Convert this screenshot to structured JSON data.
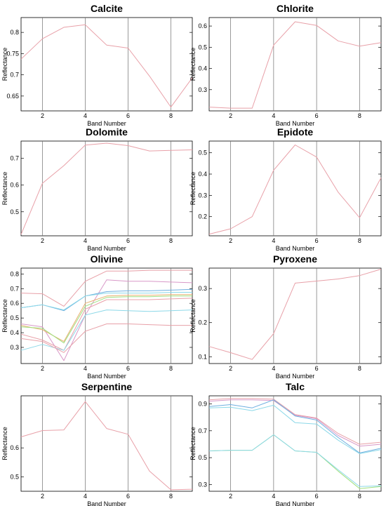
{
  "chart_data": [
    {
      "type": "line",
      "title": "Calcite",
      "xlabel": "Band Number",
      "ylabel": "Reflectance",
      "xlim": [
        1,
        9
      ],
      "ylim": [
        0.615,
        0.835
      ],
      "xticks": [
        2,
        4,
        6,
        8
      ],
      "yticks": [
        0.65,
        0.7,
        0.75,
        0.8
      ],
      "ytick_labels": [
        "0.65",
        "0.7",
        "0.75",
        "0.8"
      ],
      "x": [
        1,
        2,
        3,
        4,
        5,
        6,
        7,
        8,
        9
      ],
      "series": [
        {
          "color": "#e8a0a8",
          "values": [
            0.737,
            0.785,
            0.812,
            0.818,
            0.77,
            0.763,
            0.697,
            0.624,
            0.693
          ]
        }
      ]
    },
    {
      "type": "line",
      "title": "Chlorite",
      "xlabel": "Band Number",
      "ylabel": "Reflectance",
      "xlim": [
        1,
        9
      ],
      "ylim": [
        0.2,
        0.64
      ],
      "xticks": [
        2,
        4,
        6,
        8
      ],
      "yticks": [
        0.3,
        0.4,
        0.5,
        0.6
      ],
      "ytick_labels": [
        "0.3",
        "0.4",
        "0.5",
        "0.6"
      ],
      "x": [
        1,
        2,
        3,
        4,
        5,
        6,
        7,
        8,
        9
      ],
      "series": [
        {
          "color": "#e8a0a8",
          "values": [
            0.218,
            0.213,
            0.213,
            0.51,
            0.62,
            0.603,
            0.53,
            0.505,
            0.522
          ]
        }
      ]
    },
    {
      "type": "line",
      "title": "Dolomite",
      "xlabel": "Band Number",
      "ylabel": "Reflectance",
      "xlim": [
        1,
        9
      ],
      "ylim": [
        0.41,
        0.765
      ],
      "xticks": [
        2,
        4,
        6,
        8
      ],
      "yticks": [
        0.5,
        0.6,
        0.7
      ],
      "ytick_labels": [
        "0.5",
        "0.6",
        "0.7"
      ],
      "x": [
        1,
        2,
        3,
        4,
        5,
        6,
        7,
        8,
        9
      ],
      "series": [
        {
          "color": "#e8a0a8",
          "values": [
            0.415,
            0.607,
            0.673,
            0.75,
            0.757,
            0.748,
            0.728,
            0.73,
            0.732
          ]
        }
      ]
    },
    {
      "type": "line",
      "title": "Epidote",
      "xlabel": "Band Number",
      "ylabel": "Reflectance",
      "xlim": [
        1,
        9
      ],
      "ylim": [
        0.11,
        0.555
      ],
      "xticks": [
        2,
        4,
        6,
        8
      ],
      "yticks": [
        0.2,
        0.3,
        0.4,
        0.5
      ],
      "ytick_labels": [
        "0.2",
        "0.3",
        "0.4",
        "0.5"
      ],
      "x": [
        1,
        2,
        3,
        4,
        5,
        6,
        7,
        8,
        9
      ],
      "series": [
        {
          "color": "#e8a0a8",
          "values": [
            0.118,
            0.143,
            0.2,
            0.418,
            0.537,
            0.48,
            0.315,
            0.195,
            0.383
          ]
        }
      ]
    },
    {
      "type": "line",
      "title": "Olivine",
      "xlabel": "Band Number",
      "ylabel": "Reflectance",
      "xlim": [
        1,
        9
      ],
      "ylim": [
        0.19,
        0.84
      ],
      "xticks": [
        2,
        4,
        6,
        8
      ],
      "yticks": [
        0.3,
        0.4,
        0.5,
        0.6,
        0.7,
        0.8
      ],
      "ytick_labels": [
        "0.3",
        "0.4",
        "0.5",
        "0.6",
        "0.7",
        "0.8"
      ],
      "x": [
        1,
        2,
        3,
        4,
        5,
        6,
        7,
        8,
        9
      ],
      "series": [
        {
          "color": "#e8a0a8",
          "values": [
            0.67,
            0.665,
            0.58,
            0.75,
            0.82,
            0.82,
            0.825,
            0.825,
            0.825
          ]
        },
        {
          "color": "#d898c8",
          "values": [
            0.46,
            0.44,
            0.21,
            0.52,
            0.76,
            0.75,
            0.75,
            0.745,
            0.74
          ]
        },
        {
          "color": "#6fb0e0",
          "values": [
            0.57,
            0.59,
            0.55,
            0.65,
            0.68,
            0.685,
            0.685,
            0.69,
            0.695
          ]
        },
        {
          "color": "#8cd8e8",
          "values": [
            0.57,
            0.59,
            0.555,
            0.65,
            0.67,
            0.67,
            0.67,
            0.675,
            0.675
          ]
        },
        {
          "color": "#e8b070",
          "values": [
            0.45,
            0.42,
            0.34,
            0.6,
            0.65,
            0.655,
            0.655,
            0.66,
            0.66
          ]
        },
        {
          "color": "#a0e080",
          "values": [
            0.44,
            0.43,
            0.33,
            0.58,
            0.64,
            0.645,
            0.645,
            0.65,
            0.65
          ]
        },
        {
          "color": "#e8a0a8",
          "values": [
            0.39,
            0.35,
            0.28,
            0.56,
            0.625,
            0.625,
            0.625,
            0.63,
            0.635
          ]
        },
        {
          "color": "#8cd8e8",
          "values": [
            0.28,
            0.32,
            0.28,
            0.52,
            0.555,
            0.55,
            0.545,
            0.55,
            0.555
          ]
        },
        {
          "color": "#e8a0a8",
          "values": [
            0.36,
            0.34,
            0.265,
            0.41,
            0.46,
            0.46,
            0.455,
            0.45,
            0.45
          ]
        }
      ]
    },
    {
      "type": "line",
      "title": "Pyroxene",
      "xlabel": "Band Number",
      "ylabel": "Reflectance",
      "xlim": [
        1,
        9
      ],
      "ylim": [
        0.08,
        0.36
      ],
      "xticks": [
        2,
        4,
        6,
        8
      ],
      "yticks": [
        0.1,
        0.2,
        0.3
      ],
      "ytick_labels": [
        "0.1",
        "0.2",
        "0.3"
      ],
      "x": [
        1,
        2,
        3,
        4,
        5,
        6,
        7,
        8,
        9
      ],
      "series": [
        {
          "color": "#e8a0a8",
          "values": [
            0.13,
            0.112,
            0.092,
            0.168,
            0.316,
            0.322,
            0.328,
            0.338,
            0.357
          ]
        }
      ]
    },
    {
      "type": "line",
      "title": "Serpentine",
      "xlabel": "Band Number",
      "ylabel": "Reflectance",
      "xlim": [
        1,
        9
      ],
      "ylim": [
        0.45,
        0.78
      ],
      "xticks": [
        2,
        4,
        6,
        8
      ],
      "yticks": [
        0.5,
        0.6
      ],
      "ytick_labels": [
        "0.5",
        "0.6"
      ],
      "x": [
        1,
        2,
        3,
        4,
        5,
        6,
        7,
        8,
        9
      ],
      "series": [
        {
          "color": "#e8a0a8",
          "values": [
            0.638,
            0.66,
            0.662,
            0.76,
            0.667,
            0.647,
            0.52,
            0.455,
            0.457
          ]
        }
      ]
    },
    {
      "type": "line",
      "title": "Talc",
      "xlabel": "Band Number",
      "ylabel": "Reflectance",
      "xlim": [
        1,
        9
      ],
      "ylim": [
        0.25,
        0.96
      ],
      "xticks": [
        2,
        4,
        6,
        8
      ],
      "yticks": [
        0.3,
        0.5,
        0.7,
        0.9
      ],
      "ytick_labels": [
        "0.3",
        "0.5",
        "0.7",
        "0.9"
      ],
      "x": [
        1,
        2,
        3,
        4,
        5,
        6,
        7,
        8,
        9
      ],
      "series": [
        {
          "color": "#e8a0a8",
          "values": [
            0.93,
            0.94,
            0.94,
            0.935,
            0.82,
            0.795,
            0.68,
            0.6,
            0.615
          ]
        },
        {
          "color": "#d898c8",
          "values": [
            0.92,
            0.93,
            0.93,
            0.925,
            0.815,
            0.79,
            0.665,
            0.585,
            0.6
          ]
        },
        {
          "color": "#6fb0e0",
          "values": [
            0.88,
            0.895,
            0.87,
            0.93,
            0.81,
            0.78,
            0.65,
            0.535,
            0.57
          ]
        },
        {
          "color": "#8cd8e8",
          "values": [
            0.87,
            0.875,
            0.85,
            0.89,
            0.76,
            0.75,
            0.63,
            0.53,
            0.56
          ]
        },
        {
          "color": "#a0e080",
          "values": [
            0.55,
            0.555,
            0.555,
            0.67,
            0.55,
            0.54,
            0.4,
            0.27,
            0.285
          ]
        },
        {
          "color": "#8cd8e8",
          "values": [
            0.55,
            0.555,
            0.555,
            0.67,
            0.55,
            0.54,
            0.41,
            0.285,
            0.29
          ]
        }
      ]
    }
  ]
}
